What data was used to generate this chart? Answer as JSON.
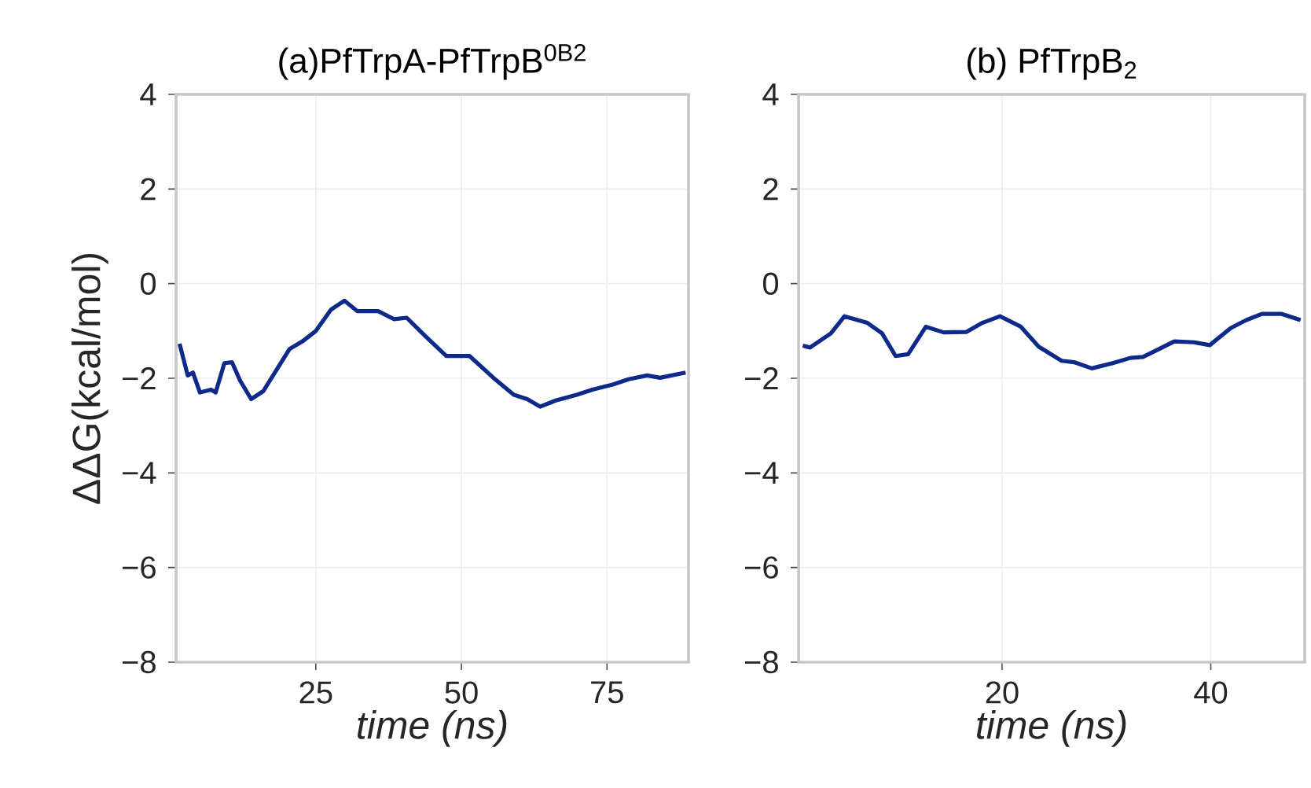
{
  "chart_data": [
    {
      "type": "line",
      "title": "(a)PfTrpA-PfTrpB$^{0B2}$",
      "xlabel": "time (ns)",
      "ylabel": "ΔΔG(kcal/mol)",
      "xlim": [
        1,
        89
      ],
      "ylim": [
        -8,
        4
      ],
      "xticks": [
        25,
        50,
        75
      ],
      "yticks": [
        {
          "value": -8,
          "label": "−8"
        },
        {
          "value": -6,
          "label": "−6"
        },
        {
          "value": -4,
          "label": "−4"
        },
        {
          "value": -2,
          "label": "−2"
        },
        {
          "value": 0,
          "label": "0"
        },
        {
          "value": 2,
          "label": "2"
        },
        {
          "value": 4,
          "label": "4"
        }
      ],
      "grid": true,
      "series": [
        {
          "color": "#0d2a8a",
          "x": [
            1.6,
            3.0,
            3.9,
            5.1,
            7.0,
            7.8,
            9.3,
            10.6,
            12.0,
            13.9,
            16.0,
            20.5,
            22.7,
            25.0,
            27.6,
            29.9,
            32.1,
            35.7,
            38.4,
            40.6,
            43.8,
            47.4,
            51.4,
            55.5,
            59.0,
            61.3,
            63.5,
            66.2,
            69.8,
            72.5,
            76.1,
            78.7,
            81.9,
            84.1,
            88.5
          ],
          "values": [
            -1.27,
            -1.94,
            -1.88,
            -2.3,
            -2.24,
            -2.3,
            -1.68,
            -1.66,
            -2.05,
            -2.44,
            -2.27,
            -1.38,
            -1.22,
            -1.0,
            -0.55,
            -0.36,
            -0.58,
            -0.58,
            -0.75,
            -0.72,
            -1.11,
            -1.53,
            -1.53,
            -1.99,
            -2.35,
            -2.44,
            -2.6,
            -2.47,
            -2.35,
            -2.24,
            -2.13,
            -2.02,
            -1.94,
            -1.99,
            -1.88
          ]
        }
      ]
    },
    {
      "type": "line",
      "title": "(b) PfTrpB$_{2}$",
      "xlabel": "time (ns)",
      "xlim": [
        0.5,
        49
      ],
      "ylim": [
        -8,
        4
      ],
      "xticks": [
        20,
        40
      ],
      "yticks": [
        {
          "value": -8,
          "label": "−8"
        },
        {
          "value": -6,
          "label": "−6"
        },
        {
          "value": -4,
          "label": "−4"
        },
        {
          "value": -2,
          "label": "−2"
        },
        {
          "value": 0,
          "label": "0"
        },
        {
          "value": 2,
          "label": "2"
        },
        {
          "value": 4,
          "label": "4"
        }
      ],
      "grid": true,
      "series": [
        {
          "color": "#0d2a8a",
          "x": [
            0.9,
            1.6,
            3.6,
            4.9,
            7.1,
            8.5,
            9.8,
            11.0,
            12.7,
            14.4,
            16.6,
            18.1,
            19.8,
            21.8,
            23.5,
            25.7,
            26.9,
            28.6,
            30.6,
            32.3,
            33.5,
            34.5,
            36.5,
            38.4,
            39.9,
            41.9,
            43.4,
            44.9,
            46.8,
            48.6
          ],
          "values": [
            -1.31,
            -1.35,
            -1.05,
            -0.69,
            -0.83,
            -1.05,
            -1.53,
            -1.49,
            -0.91,
            -1.03,
            -1.02,
            -0.83,
            -0.69,
            -0.91,
            -1.33,
            -1.63,
            -1.66,
            -1.79,
            -1.68,
            -1.57,
            -1.55,
            -1.44,
            -1.22,
            -1.24,
            -1.3,
            -0.94,
            -0.77,
            -0.64,
            -0.64,
            -0.77
          ]
        }
      ]
    }
  ]
}
